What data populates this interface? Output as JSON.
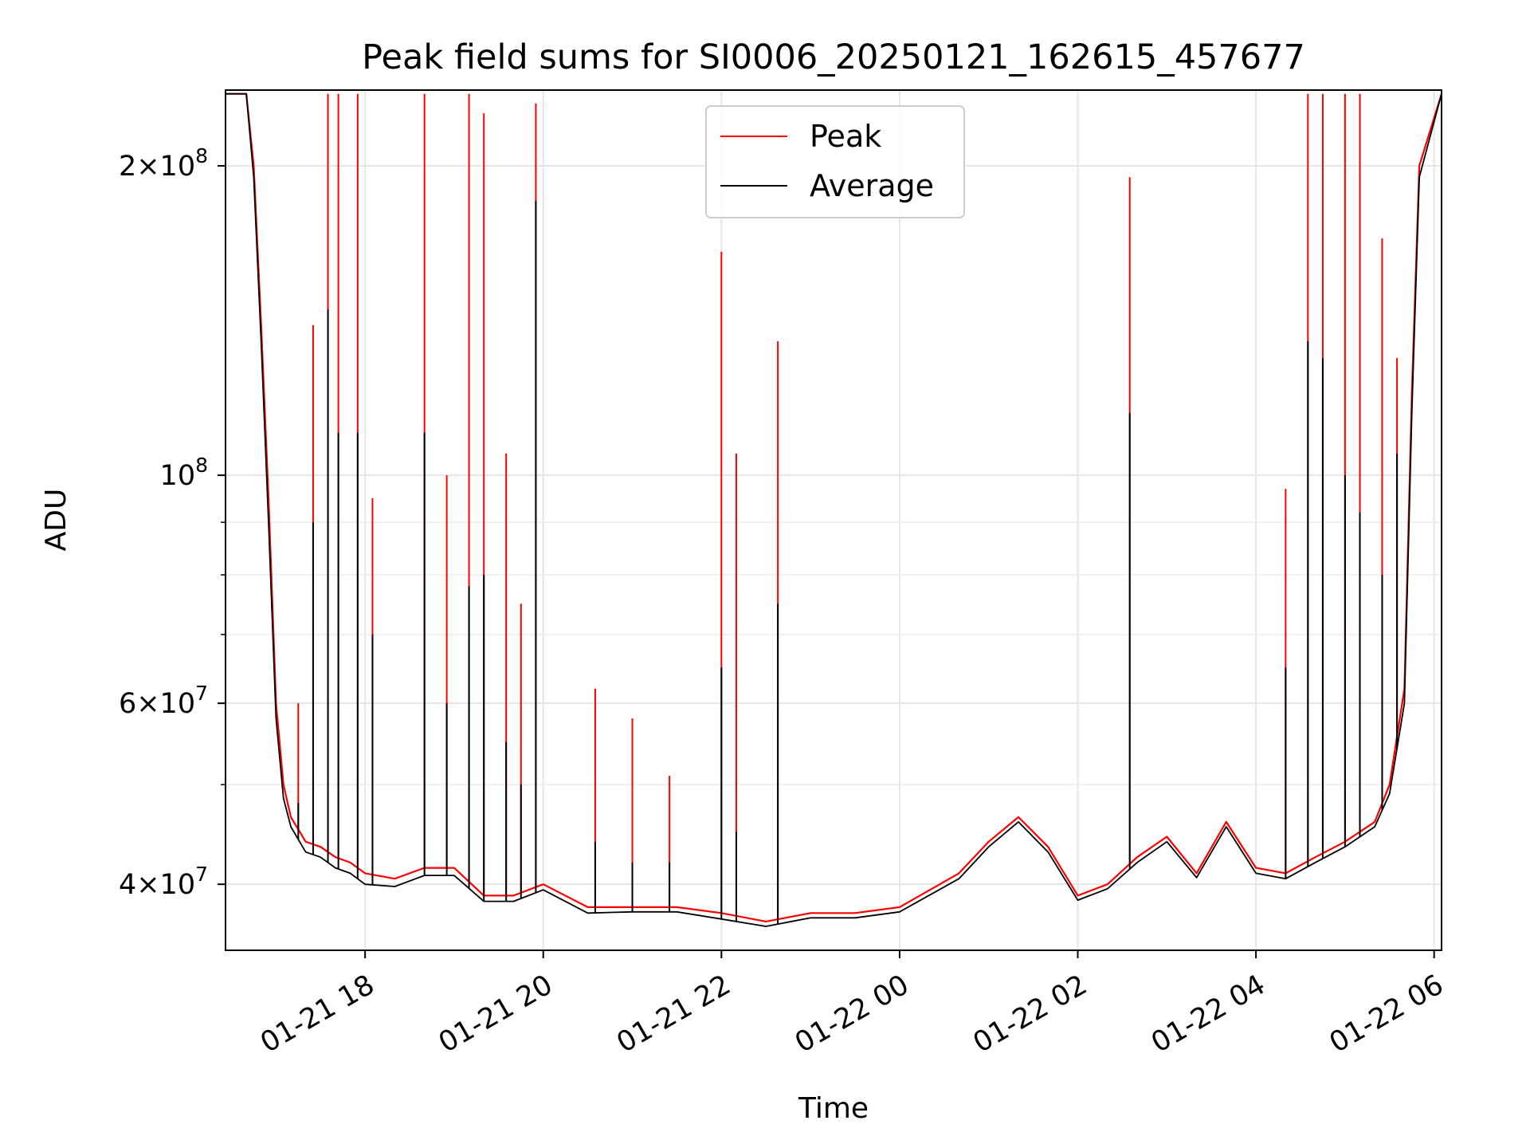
{
  "chart_data": {
    "type": "line",
    "title": "Peak field sums for SI0006_20250121_162615_457677",
    "xlabel": "Time",
    "ylabel": "ADU",
    "yscale": "log",
    "ylim": [
      34500000,
      237000000
    ],
    "xlim": [
      "2025-01-21 16:26",
      "2025-01-22 06:05"
    ],
    "grid": true,
    "legend": "upper center",
    "x_ticks": [
      "01-21 18",
      "01-21 20",
      "01-21 22",
      "01-22 00",
      "01-22 02",
      "01-22 04",
      "01-22 06"
    ],
    "y_ticks": [
      {
        "value": 40000000,
        "mantissa": "4",
        "exponent": "7"
      },
      {
        "value": 60000000,
        "mantissa": "6",
        "exponent": "7"
      },
      {
        "value": 100000000,
        "mantissa": "",
        "exponent": "8"
      },
      {
        "value": 200000000,
        "mantissa": "2",
        "exponent": "8"
      }
    ],
    "series": [
      {
        "name": "Peak",
        "color": "#ff0000",
        "x": [
          "2025-01-21 16:26",
          "2025-01-21 16:40",
          "2025-01-21 16:45",
          "2025-01-21 16:50",
          "2025-01-21 16:55",
          "2025-01-21 17:00",
          "2025-01-21 17:05",
          "2025-01-21 17:10",
          "2025-01-21 17:20",
          "2025-01-21 17:30",
          "2025-01-21 17:40",
          "2025-01-21 17:50",
          "2025-01-21 18:00",
          "2025-01-21 18:20",
          "2025-01-21 18:40",
          "2025-01-21 19:00",
          "2025-01-21 19:20",
          "2025-01-21 19:40",
          "2025-01-21 20:00",
          "2025-01-21 20:30",
          "2025-01-21 21:00",
          "2025-01-21 21:30",
          "2025-01-21 22:00",
          "2025-01-21 22:30",
          "2025-01-21 23:00",
          "2025-01-21 23:30",
          "2025-01-22 00:00",
          "2025-01-22 00:40",
          "2025-01-22 01:00",
          "2025-01-22 01:20",
          "2025-01-22 01:40",
          "2025-01-22 02:00",
          "2025-01-22 02:20",
          "2025-01-22 02:40",
          "2025-01-22 03:00",
          "2025-01-22 03:20",
          "2025-01-22 03:40",
          "2025-01-22 04:00",
          "2025-01-22 04:20",
          "2025-01-22 04:40",
          "2025-01-22 05:00",
          "2025-01-22 05:20",
          "2025-01-22 05:30",
          "2025-01-22 05:40",
          "2025-01-22 05:45",
          "2025-01-22 05:50",
          "2025-01-22 06:05"
        ],
        "values": [
          235000000,
          235000000,
          200000000,
          140000000,
          95000000,
          60000000,
          50000000,
          46500000,
          44000000,
          43500000,
          42500000,
          42000000,
          41000000,
          40500000,
          41500000,
          41500000,
          39000000,
          39000000,
          40000000,
          38000000,
          38000000,
          38000000,
          37500000,
          36800000,
          37500000,
          37500000,
          38000000,
          41000000,
          44000000,
          46500000,
          43500000,
          39000000,
          40000000,
          42500000,
          44500000,
          41000000,
          46000000,
          41500000,
          41000000,
          42500000,
          44000000,
          46000000,
          50000000,
          62000000,
          120000000,
          200000000,
          235000000
        ]
      },
      {
        "name": "Average",
        "color": "#000000",
        "x": [
          "2025-01-21 16:26",
          "2025-01-21 16:40",
          "2025-01-21 16:45",
          "2025-01-21 16:50",
          "2025-01-21 16:55",
          "2025-01-21 17:00",
          "2025-01-21 17:05",
          "2025-01-21 17:10",
          "2025-01-21 17:20",
          "2025-01-21 17:30",
          "2025-01-21 17:40",
          "2025-01-21 17:50",
          "2025-01-21 18:00",
          "2025-01-21 18:20",
          "2025-01-21 18:40",
          "2025-01-21 19:00",
          "2025-01-21 19:20",
          "2025-01-21 19:40",
          "2025-01-21 20:00",
          "2025-01-21 20:30",
          "2025-01-21 21:00",
          "2025-01-21 21:30",
          "2025-01-21 22:00",
          "2025-01-21 22:30",
          "2025-01-21 23:00",
          "2025-01-21 23:30",
          "2025-01-22 00:00",
          "2025-01-22 00:40",
          "2025-01-22 01:00",
          "2025-01-22 01:20",
          "2025-01-22 01:40",
          "2025-01-22 02:00",
          "2025-01-22 02:20",
          "2025-01-22 02:40",
          "2025-01-22 03:00",
          "2025-01-22 03:20",
          "2025-01-22 03:40",
          "2025-01-22 04:00",
          "2025-01-22 04:20",
          "2025-01-22 04:40",
          "2025-01-22 05:00",
          "2025-01-22 05:20",
          "2025-01-22 05:30",
          "2025-01-22 05:40",
          "2025-01-22 05:45",
          "2025-01-22 05:50",
          "2025-01-22 06:05"
        ],
        "values": [
          235000000,
          235000000,
          195000000,
          135000000,
          90000000,
          58000000,
          48500000,
          45500000,
          43000000,
          42500000,
          41500000,
          41000000,
          40000000,
          39800000,
          40800000,
          40800000,
          38500000,
          38500000,
          39500000,
          37500000,
          37600000,
          37600000,
          37000000,
          36400000,
          37100000,
          37100000,
          37600000,
          40500000,
          43500000,
          46000000,
          43000000,
          38600000,
          39600000,
          42000000,
          44000000,
          40600000,
          45500000,
          41000000,
          40500000,
          42000000,
          43500000,
          45500000,
          49000000,
          60000000,
          115000000,
          195000000,
          235000000
        ]
      }
    ],
    "spikes": [
      {
        "x": "2025-01-21 17:15",
        "peak": 60000000,
        "average": 48000000
      },
      {
        "x": "2025-01-21 17:25",
        "peak": 140000000,
        "average": 90000000
      },
      {
        "x": "2025-01-21 17:35",
        "peak": 235000000,
        "average": 145000000
      },
      {
        "x": "2025-01-21 17:42",
        "peak": 235000000,
        "average": 110000000
      },
      {
        "x": "2025-01-21 17:55",
        "peak": 235000000,
        "average": 110000000
      },
      {
        "x": "2025-01-21 18:05",
        "peak": 95000000,
        "average": 70000000
      },
      {
        "x": "2025-01-21 18:40",
        "peak": 235000000,
        "average": 110000000
      },
      {
        "x": "2025-01-21 18:55",
        "peak": 100000000,
        "average": 60000000
      },
      {
        "x": "2025-01-21 19:10",
        "peak": 235000000,
        "average": 78000000
      },
      {
        "x": "2025-01-21 19:20",
        "peak": 225000000,
        "average": 80000000
      },
      {
        "x": "2025-01-21 19:35",
        "peak": 105000000,
        "average": 55000000
      },
      {
        "x": "2025-01-21 19:45",
        "peak": 75000000,
        "average": 50000000
      },
      {
        "x": "2025-01-21 19:55",
        "peak": 230000000,
        "average": 185000000
      },
      {
        "x": "2025-01-21 20:35",
        "peak": 62000000,
        "average": 44000000
      },
      {
        "x": "2025-01-21 21:00",
        "peak": 58000000,
        "average": 42000000
      },
      {
        "x": "2025-01-21 21:25",
        "peak": 51000000,
        "average": 42000000
      },
      {
        "x": "2025-01-21 22:00",
        "peak": 165000000,
        "average": 65000000
      },
      {
        "x": "2025-01-21 22:10",
        "peak": 105000000,
        "average": 45000000
      },
      {
        "x": "2025-01-21 22:38",
        "peak": 135000000,
        "average": 75000000
      },
      {
        "x": "2025-01-22 02:35",
        "peak": 195000000,
        "average": 115000000
      },
      {
        "x": "2025-01-22 04:20",
        "peak": 97000000,
        "average": 65000000
      },
      {
        "x": "2025-01-22 04:35",
        "peak": 235000000,
        "average": 135000000
      },
      {
        "x": "2025-01-22 04:45",
        "peak": 235000000,
        "average": 130000000
      },
      {
        "x": "2025-01-22 05:00",
        "peak": 235000000,
        "average": 100000000
      },
      {
        "x": "2025-01-22 05:10",
        "peak": 235000000,
        "average": 92000000
      },
      {
        "x": "2025-01-22 05:25",
        "peak": 170000000,
        "average": 80000000
      },
      {
        "x": "2025-01-22 05:35",
        "peak": 130000000,
        "average": 105000000
      }
    ]
  }
}
